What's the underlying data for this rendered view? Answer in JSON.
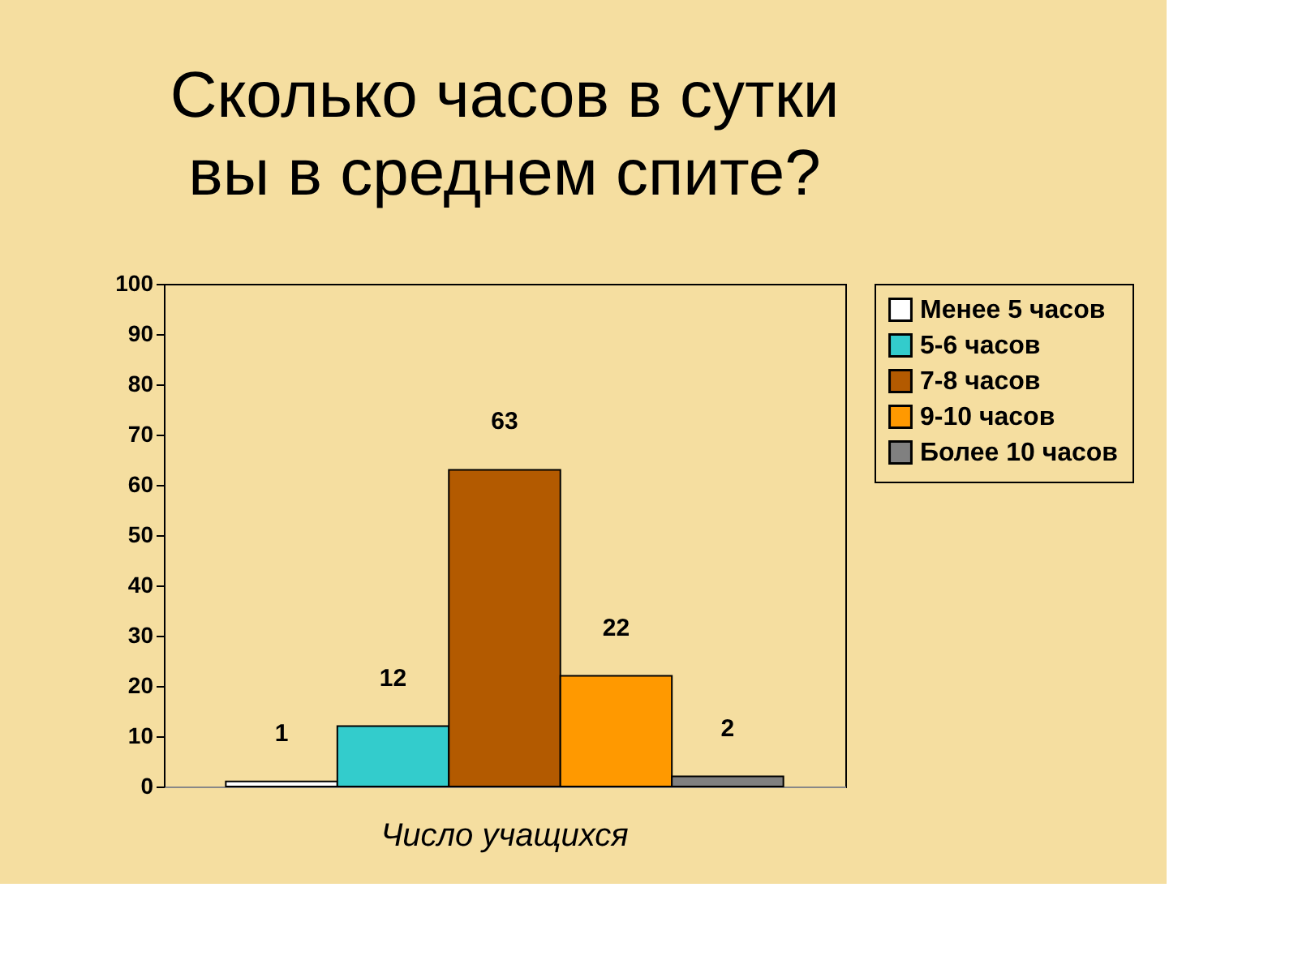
{
  "chart_data": {
    "type": "bar",
    "title": "Сколько часов в сутки вы в среднем спите?",
    "categories": [
      "Число учащихся"
    ],
    "series": [
      {
        "name": "Менее 5 часов",
        "color": "#ffffff",
        "values": [
          1
        ]
      },
      {
        "name": "5-6 часов",
        "color": "#33cccc",
        "values": [
          12
        ]
      },
      {
        "name": "7-8 часов",
        "color": "#b35a00",
        "values": [
          63
        ]
      },
      {
        "name": "9-10 часов",
        "color": "#ff9900",
        "values": [
          22
        ]
      },
      {
        "name": "Более 10 часов",
        "color": "#808080",
        "values": [
          2
        ]
      }
    ],
    "ylim": [
      0,
      100
    ],
    "yticks": [
      0,
      10,
      20,
      30,
      40,
      50,
      60,
      70,
      80,
      90,
      100
    ],
    "data_labels": true,
    "legend": "right",
    "grid": false
  }
}
